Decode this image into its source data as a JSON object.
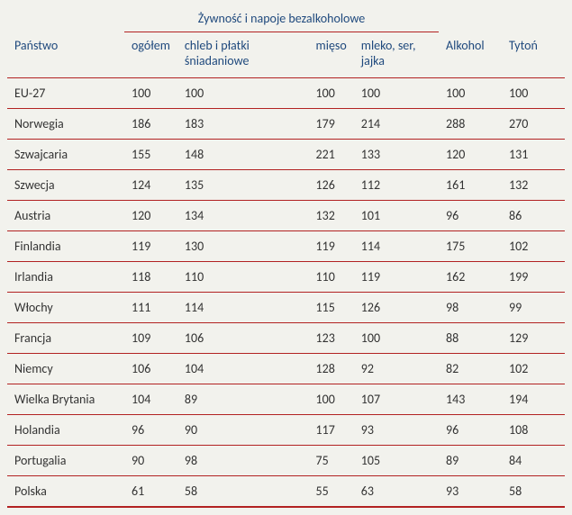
{
  "table": {
    "type": "table",
    "colors": {
      "header_text": "#1f497d",
      "cell_text": "#333333",
      "border": "#b22222",
      "background": "#f2f2ed"
    },
    "fontsize": 14,
    "group_header": "Żywność i napoje bezalkoholowe",
    "columns": {
      "country": "Państwo",
      "total": "ogółem",
      "bread": "chleb i płatki śniadaniowe",
      "meat": "mięso",
      "milk": "mleko, ser, jajka",
      "alcohol": "Alkohol",
      "tobacco": "Tytoń"
    },
    "rows": [
      {
        "country": "EU-27",
        "total": "100",
        "bread": "100",
        "meat": "100",
        "milk": "100",
        "alcohol": "100",
        "tobacco": "100"
      },
      {
        "country": "Norwegia",
        "total": "186",
        "bread": "183",
        "meat": "179",
        "milk": "214",
        "alcohol": "288",
        "tobacco": "270"
      },
      {
        "country": "Szwajcaria",
        "total": "155",
        "bread": "148",
        "meat": "221",
        "milk": "133",
        "alcohol": "120",
        "tobacco": "131"
      },
      {
        "country": "Szwecja",
        "total": "124",
        "bread": "135",
        "meat": "126",
        "milk": "112",
        "alcohol": "161",
        "tobacco": "132"
      },
      {
        "country": "Austria",
        "total": "120",
        "bread": "134",
        "meat": "132",
        "milk": "101",
        "alcohol": "96",
        "tobacco": "86"
      },
      {
        "country": "Finlandia",
        "total": "119",
        "bread": "130",
        "meat": "119",
        "milk": "114",
        "alcohol": "175",
        "tobacco": "102"
      },
      {
        "country": "Irlandia",
        "total": "118",
        "bread": "110",
        "meat": "110",
        "milk": "119",
        "alcohol": "162",
        "tobacco": "199"
      },
      {
        "country": "Włochy",
        "total": "111",
        "bread": "114",
        "meat": "115",
        "milk": "126",
        "alcohol": "98",
        "tobacco": "99"
      },
      {
        "country": "Francja",
        "total": "109",
        "bread": "106",
        "meat": "123",
        "milk": "100",
        "alcohol": "88",
        "tobacco": "129"
      },
      {
        "country": "Niemcy",
        "total": "106",
        "bread": "104",
        "meat": "128",
        "milk": "92",
        "alcohol": "82",
        "tobacco": "102"
      },
      {
        "country": "Wielka Brytania",
        "total": "104",
        "bread": "89",
        "meat": "100",
        "milk": "107",
        "alcohol": "143",
        "tobacco": "194"
      },
      {
        "country": "Holandia",
        "total": "96",
        "bread": "90",
        "meat": "117",
        "milk": "93",
        "alcohol": "96",
        "tobacco": "108"
      },
      {
        "country": "Portugalia",
        "total": "90",
        "bread": "98",
        "meat": "75",
        "milk": "105",
        "alcohol": "89",
        "tobacco": "84"
      },
      {
        "country": "Polska",
        "total": "61",
        "bread": "58",
        "meat": "55",
        "milk": "63",
        "alcohol": "93",
        "tobacco": "58"
      }
    ]
  }
}
